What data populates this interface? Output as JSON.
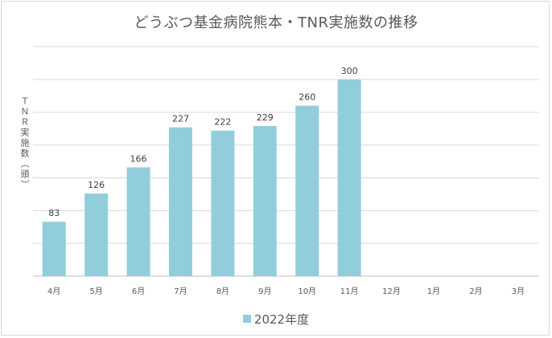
{
  "chart_data": {
    "type": "bar",
    "title": "どうぶつ基金病院熊本・TNR実施数の推移",
    "ylabel": "ＴＮＲ実施数（頭）",
    "xlabel": "",
    "categories": [
      "4月",
      "5月",
      "6月",
      "7月",
      "8月",
      "9月",
      "10月",
      "11月",
      "12月",
      "1月",
      "2月",
      "3月"
    ],
    "series": [
      {
        "name": "2022年度",
        "values": [
          83,
          126,
          166,
          227,
          222,
          229,
          260,
          300,
          null,
          null,
          null,
          null
        ],
        "color": "#92cddc"
      }
    ],
    "ylim": [
      0,
      300
    ],
    "grid": true,
    "legend_position": "bottom",
    "data_labels": true
  }
}
